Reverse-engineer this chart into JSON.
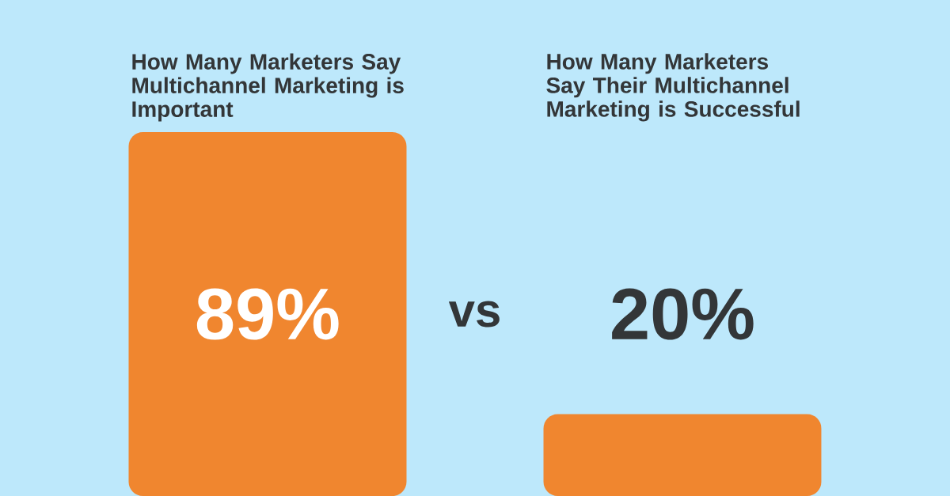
{
  "chart_data": {
    "type": "bar",
    "categories": [
      "How Many Marketers Say Multichannel Marketing is Important",
      "How Many Marketers Say Their Multichannel Marketing is Successful"
    ],
    "values": [
      89,
      20
    ],
    "value_labels": [
      "89%",
      "20%"
    ],
    "color": "#f0862f",
    "tick_labels": "x",
    "annotations": [
      "vs"
    ]
  }
}
